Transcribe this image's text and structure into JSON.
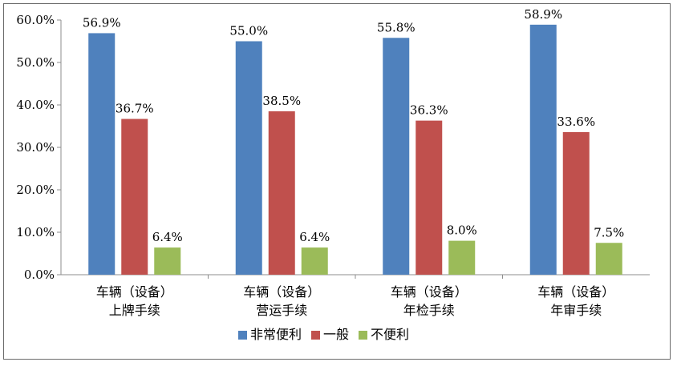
{
  "chart_data": {
    "type": "bar",
    "categories": [
      [
        "车辆（设备）",
        "上牌手续"
      ],
      [
        "车辆（设备）",
        "营运手续"
      ],
      [
        "车辆（设备）",
        "年检手续"
      ],
      [
        "车辆（设备）",
        "年审手续"
      ]
    ],
    "series": [
      {
        "name": "非常便利",
        "color": "#4f81bd",
        "values": [
          56.9,
          55.0,
          55.8,
          58.9
        ],
        "labels": [
          "56.9%",
          "55.0%",
          "55.8%",
          "58.9%"
        ]
      },
      {
        "name": "一般",
        "color": "#c0504d",
        "values": [
          36.7,
          38.5,
          36.3,
          33.6
        ],
        "labels": [
          "36.7%",
          "38.5%",
          "36.3%",
          "33.6%"
        ]
      },
      {
        "name": "不便利",
        "color": "#9bbb59",
        "values": [
          6.4,
          6.4,
          8.0,
          7.5
        ],
        "labels": [
          "6.4%",
          "6.4%",
          "8.0%",
          "7.5%"
        ]
      }
    ],
    "yticks": [
      "0.0%",
      "10.0%",
      "20.0%",
      "30.0%",
      "40.0%",
      "50.0%",
      "60.0%"
    ],
    "ylim": [
      0,
      60
    ],
    "grid": false,
    "legend_position": "bottom",
    "title": "",
    "xlabel": "",
    "ylabel": ""
  }
}
